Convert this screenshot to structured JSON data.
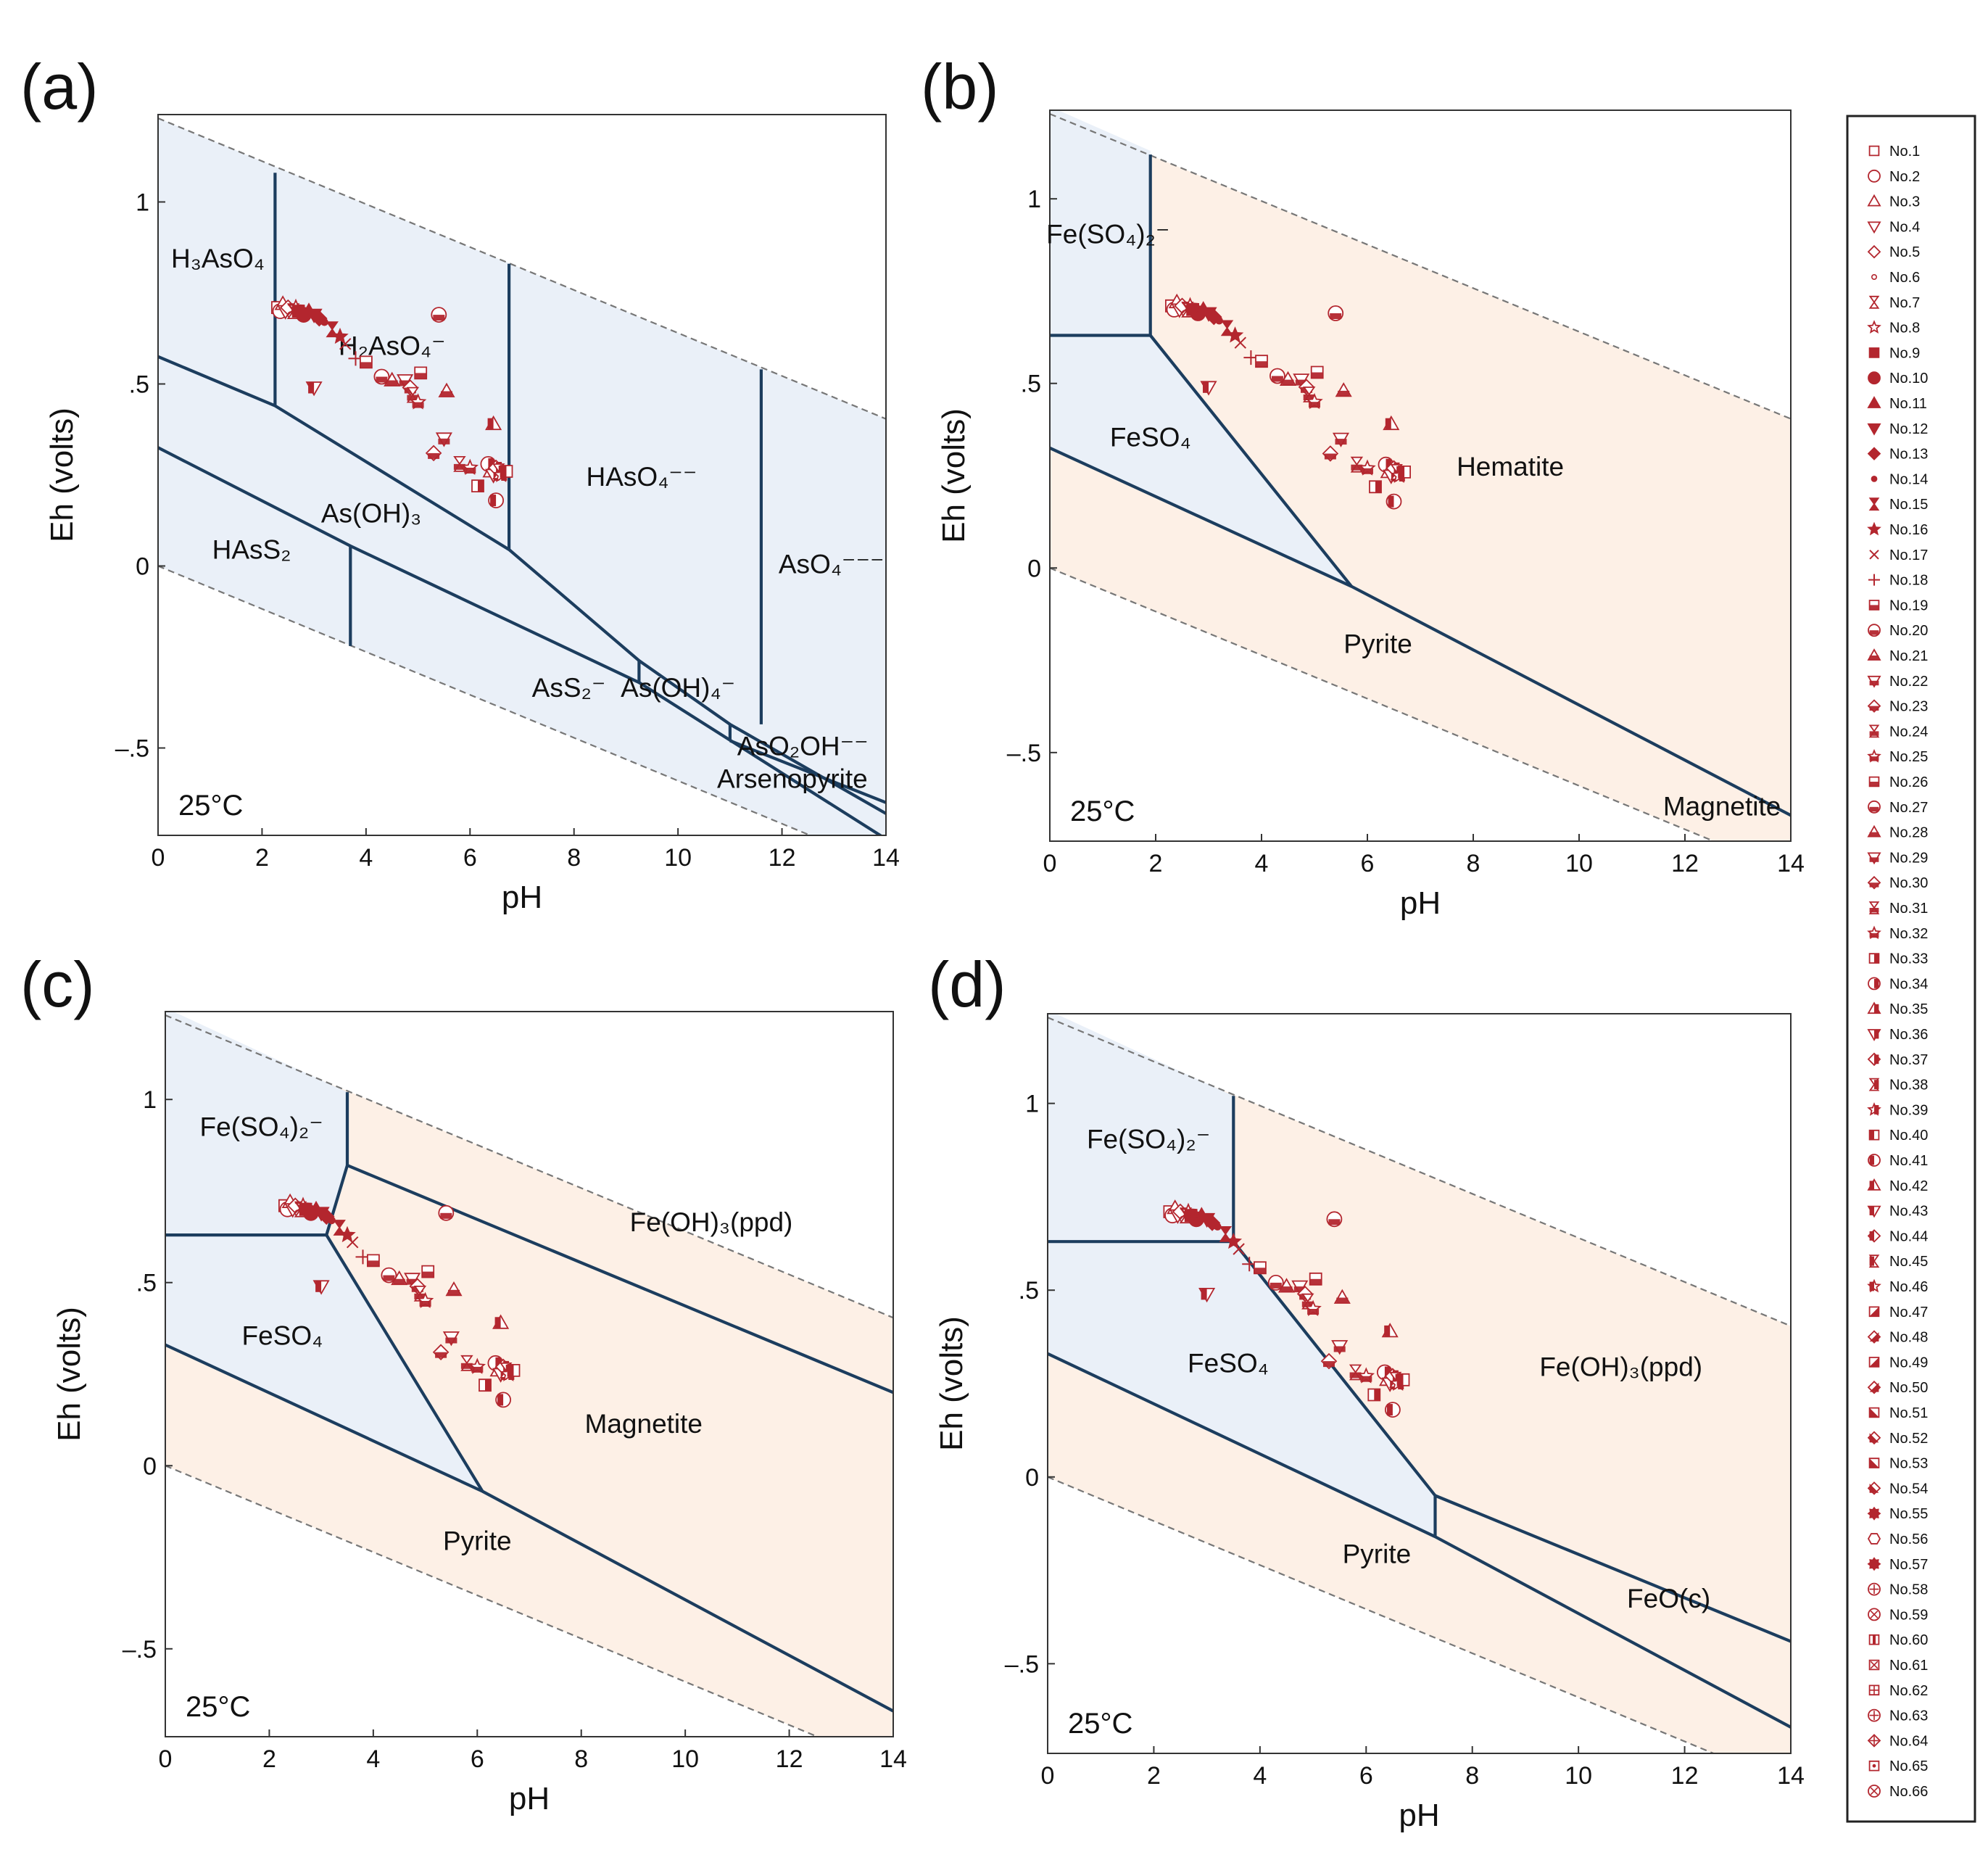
{
  "colors": {
    "boundary": "#1c3d5e",
    "water_limit": "#777777",
    "aqueous_fill": "#eaf0f8",
    "solid_fill": "#fdf0e6",
    "marker": "#b3262e"
  },
  "legend": {
    "entries": [
      "No.1",
      "No.2",
      "No.3",
      "No.4",
      "No.5",
      "No.6",
      "No.7",
      "No.8",
      "No.9",
      "No.10",
      "No.11",
      "No.12",
      "No.13",
      "No.14",
      "No.15",
      "No.16",
      "No.17",
      "No.18",
      "No.19",
      "No.20",
      "No.21",
      "No.22",
      "No.23",
      "No.24",
      "No.25",
      "No.26",
      "No.27",
      "No.28",
      "No.29",
      "No.30",
      "No.31",
      "No.32",
      "No.33",
      "No.34",
      "No.35",
      "No.36",
      "No.37",
      "No.38",
      "No.39",
      "No.40",
      "No.41",
      "No.42",
      "No.43",
      "No.44",
      "No.45",
      "No.46",
      "No.47",
      "No.48",
      "No.49",
      "No.50",
      "No.51",
      "No.52",
      "No.53",
      "No.54",
      "No.55",
      "No.56",
      "No.57",
      "No.58",
      "No.59",
      "No.60",
      "No.61",
      "No.62",
      "No.63",
      "No.64",
      "No.65",
      "No.66"
    ],
    "markers": [
      "sq-open",
      "circ-open",
      "tri-open",
      "tridown-open",
      "dia-open",
      "dot-small",
      "hourglass-open",
      "star-open",
      "sq-fill",
      "circ-fill",
      "tri-fill",
      "tridown-fill",
      "dia-fill",
      "dot-fill",
      "hourglass-fill",
      "star-fill",
      "x",
      "plus",
      "sq-halfb",
      "circ-halfb",
      "tri-halfb",
      "tridown-halfb",
      "dia-halfb",
      "hourglass-halfb",
      "star-halfb",
      "sq-halfb",
      "circ-halfb",
      "tri-halfb",
      "tridown-halfb",
      "dia-halfb",
      "hourglass-halfb",
      "star-halfb",
      "sq-halfr",
      "circ-halfr",
      "tri-halfr",
      "tridown-halfr",
      "dia-halfr",
      "hourglass-halfr",
      "star-halfr",
      "sq-halfl",
      "circ-halfl",
      "tri-halfl",
      "tridown-halfl",
      "dia-halfl",
      "hourglass-halfl",
      "star-halfl",
      "sq-diag",
      "dia-diag",
      "sq-diag",
      "dia-diag",
      "sq-diag2",
      "dia-diag2",
      "sq-diag2",
      "dia-diag2",
      "burst",
      "hex-open",
      "gear",
      "circ-plus",
      "circ-x",
      "sq-bar",
      "sq-x",
      "sq-plus",
      "circ-plus",
      "dia-plus",
      "sq-dot",
      "circ-x"
    ]
  },
  "chart_data": [
    {
      "type": "scatter",
      "panel": "(a)",
      "xlabel": "pH",
      "ylabel": "Eh (volts)",
      "xlim": [
        0,
        14
      ],
      "ylim": [
        -0.74,
        1.24
      ],
      "xticks": [
        "0",
        "2",
        "4",
        "6",
        "8",
        "10",
        "12",
        "14"
      ],
      "yticks": [
        {
          "v": 1,
          "label": "1"
        },
        {
          "v": 0.5,
          "label": ".5"
        },
        {
          "v": 0,
          "label": "0"
        },
        {
          "v": -0.5,
          "label": "–.5"
        }
      ],
      "temperature": "25°C",
      "background_fill": "aqueous",
      "regions": [],
      "boundaries": [
        [
          [
            0,
            0.575
          ],
          [
            2.25,
            0.44
          ],
          [
            6.75,
            0.045
          ],
          [
            9.25,
            -0.26
          ],
          [
            11.0,
            -0.435
          ],
          [
            14,
            -0.68
          ]
        ],
        [
          [
            0,
            0.325
          ],
          [
            3.7,
            0.055
          ],
          [
            9.25,
            -0.32
          ],
          [
            14,
            -0.75
          ]
        ],
        [
          [
            2.25,
            1.08
          ],
          [
            2.25,
            0.44
          ]
        ],
        [
          [
            6.75,
            0.83
          ],
          [
            6.75,
            0.045
          ]
        ],
        [
          [
            11.6,
            0.54
          ],
          [
            11.6,
            -0.435
          ]
        ],
        [
          [
            3.7,
            0.055
          ],
          [
            3.7,
            -0.22
          ]
        ],
        [
          [
            9.25,
            -0.26
          ],
          [
            9.25,
            -0.32
          ]
        ],
        [
          [
            11.0,
            -0.435
          ],
          [
            11.0,
            -0.48
          ]
        ],
        [
          [
            11.0,
            -0.48
          ],
          [
            14,
            -0.65
          ]
        ]
      ],
      "labels": [
        {
          "t": "H₃AsO₄",
          "x": 1.15,
          "y": 0.82
        },
        {
          "t": "H₂AsO₄⁻",
          "x": 4.5,
          "y": 0.58
        },
        {
          "t": "HAsO₄⁻⁻",
          "x": 9.3,
          "y": 0.22
        },
        {
          "t": "AsO₄⁻⁻⁻",
          "x": 12.95,
          "y": -0.02
        },
        {
          "t": "As(OH)₃",
          "x": 4.1,
          "y": 0.12
        },
        {
          "t": "HAsS₂",
          "x": 1.8,
          "y": 0.02
        },
        {
          "t": "AsS₂⁻",
          "x": 7.9,
          "y": -0.36
        },
        {
          "t": "As(OH)₄⁻",
          "x": 10.0,
          "y": -0.36
        },
        {
          "t": "AsO₂OH⁻⁻",
          "x": 12.4,
          "y": -0.52
        },
        {
          "t": "Arsenopyrite",
          "x": 12.2,
          "y": -0.61
        }
      ]
    },
    {
      "type": "scatter",
      "panel": "(b)",
      "xlabel": "pH",
      "ylabel": "Eh (volts)",
      "xlim": [
        0,
        14
      ],
      "ylim": [
        -0.74,
        1.24
      ],
      "xticks": [
        "0",
        "2",
        "4",
        "6",
        "8",
        "10",
        "12",
        "14"
      ],
      "yticks": [
        {
          "v": 1,
          "label": "1"
        },
        {
          "v": 0.5,
          "label": ".5"
        },
        {
          "v": 0,
          "label": "0"
        },
        {
          "v": -0.5,
          "label": "–.5"
        }
      ],
      "temperature": "25°C",
      "background_fill": "solid",
      "regions": [
        [
          [
            0,
            1.25
          ],
          [
            1.9,
            1.13
          ],
          [
            1.9,
            0.63
          ],
          [
            0,
            0.63
          ]
        ],
        [
          [
            0,
            0.63
          ],
          [
            1.9,
            0.63
          ],
          [
            5.7,
            -0.05
          ],
          [
            0,
            0.325
          ]
        ]
      ],
      "boundaries": [
        [
          [
            0,
            0.325
          ],
          [
            5.7,
            -0.05
          ],
          [
            14,
            -0.67
          ]
        ],
        [
          [
            0,
            0.63
          ],
          [
            1.9,
            0.63
          ]
        ],
        [
          [
            1.9,
            1.12
          ],
          [
            1.9,
            0.63
          ]
        ],
        [
          [
            1.9,
            0.63
          ],
          [
            5.7,
            -0.05
          ]
        ]
      ],
      "labels": [
        {
          "t": "Fe(SO₄)₂⁻",
          "x": 1.1,
          "y": 0.88
        },
        {
          "t": "FeSO₄",
          "x": 1.9,
          "y": 0.33
        },
        {
          "t": "Hematite",
          "x": 8.7,
          "y": 0.25
        },
        {
          "t": "Pyrite",
          "x": 6.2,
          "y": -0.23
        },
        {
          "t": "Magnetite",
          "x": 12.7,
          "y": -0.67
        }
      ]
    },
    {
      "type": "scatter",
      "panel": "(c)",
      "xlabel": "pH",
      "ylabel": "Eh (volts)",
      "xlim": [
        0,
        14
      ],
      "ylim": [
        -0.74,
        1.24
      ],
      "xticks": [
        "0",
        "2",
        "4",
        "6",
        "8",
        "10",
        "12",
        "14"
      ],
      "yticks": [
        {
          "v": 1,
          "label": "1"
        },
        {
          "v": 0.5,
          "label": ".5"
        },
        {
          "v": 0,
          "label": "0"
        },
        {
          "v": -0.5,
          "label": "–.5"
        }
      ],
      "temperature": "25°C",
      "background_fill": "solid",
      "regions": [
        [
          [
            0,
            1.25
          ],
          [
            3.5,
            1.02
          ],
          [
            3.5,
            0.82
          ],
          [
            3.1,
            0.63
          ],
          [
            0,
            0.63
          ]
        ],
        [
          [
            0,
            0.63
          ],
          [
            3.1,
            0.63
          ],
          [
            6.1,
            -0.07
          ],
          [
            0,
            0.33
          ]
        ]
      ],
      "boundaries": [
        [
          [
            0,
            0.33
          ],
          [
            6.1,
            -0.07
          ],
          [
            14,
            -0.67
          ]
        ],
        [
          [
            0,
            0.63
          ],
          [
            3.1,
            0.63
          ]
        ],
        [
          [
            3.1,
            0.63
          ],
          [
            3.5,
            0.82
          ],
          [
            14,
            0.2
          ]
        ],
        [
          [
            3.5,
            1.02
          ],
          [
            3.5,
            0.82
          ]
        ],
        [
          [
            3.1,
            0.63
          ],
          [
            6.1,
            -0.07
          ]
        ]
      ],
      "labels": [
        {
          "t": "Fe(SO₄)₂⁻",
          "x": 1.85,
          "y": 0.9
        },
        {
          "t": "Fe(OH)₃(ppd)",
          "x": 10.5,
          "y": 0.64
        },
        {
          "t": "FeSO₄",
          "x": 2.25,
          "y": 0.33
        },
        {
          "t": "Magnetite",
          "x": 9.2,
          "y": 0.09
        },
        {
          "t": "Pyrite",
          "x": 6.0,
          "y": -0.23
        }
      ]
    },
    {
      "type": "scatter",
      "panel": "(d)",
      "xlabel": "pH",
      "ylabel": "Eh (volts)",
      "xlim": [
        0,
        14
      ],
      "ylim": [
        -0.74,
        1.24
      ],
      "xticks": [
        "0",
        "2",
        "4",
        "6",
        "8",
        "10",
        "12",
        "14"
      ],
      "yticks": [
        {
          "v": 1,
          "label": "1"
        },
        {
          "v": 0.5,
          "label": ".5"
        },
        {
          "v": 0,
          "label": "0"
        },
        {
          "v": -0.5,
          "label": "–.5"
        }
      ],
      "temperature": "25°C",
      "background_fill": "solid",
      "regions": [
        [
          [
            0,
            1.25
          ],
          [
            3.5,
            1.02
          ],
          [
            3.5,
            0.63
          ],
          [
            0,
            0.63
          ]
        ],
        [
          [
            0,
            0.63
          ],
          [
            3.5,
            0.63
          ],
          [
            7.3,
            -0.05
          ],
          [
            7.3,
            -0.16
          ],
          [
            0,
            0.33
          ]
        ]
      ],
      "boundaries": [
        [
          [
            0,
            0.33
          ],
          [
            7.3,
            -0.16
          ],
          [
            14,
            -0.67
          ]
        ],
        [
          [
            0,
            0.63
          ],
          [
            3.5,
            0.63
          ]
        ],
        [
          [
            3.5,
            1.02
          ],
          [
            3.5,
            0.63
          ]
        ],
        [
          [
            3.5,
            0.63
          ],
          [
            7.3,
            -0.05
          ]
        ],
        [
          [
            7.3,
            -0.05
          ],
          [
            7.3,
            -0.16
          ]
        ],
        [
          [
            7.3,
            -0.05
          ],
          [
            14,
            -0.44
          ]
        ]
      ],
      "labels": [
        {
          "t": "Fe(SO₄)₂⁻",
          "x": 1.9,
          "y": 0.88
        },
        {
          "t": "FeSO₄",
          "x": 3.4,
          "y": 0.28
        },
        {
          "t": "Fe(OH)₃(ppd)",
          "x": 10.8,
          "y": 0.27
        },
        {
          "t": "Pyrite",
          "x": 6.2,
          "y": -0.23
        },
        {
          "t": "FeO(c)",
          "x": 11.7,
          "y": -0.35
        }
      ]
    }
  ]
}
